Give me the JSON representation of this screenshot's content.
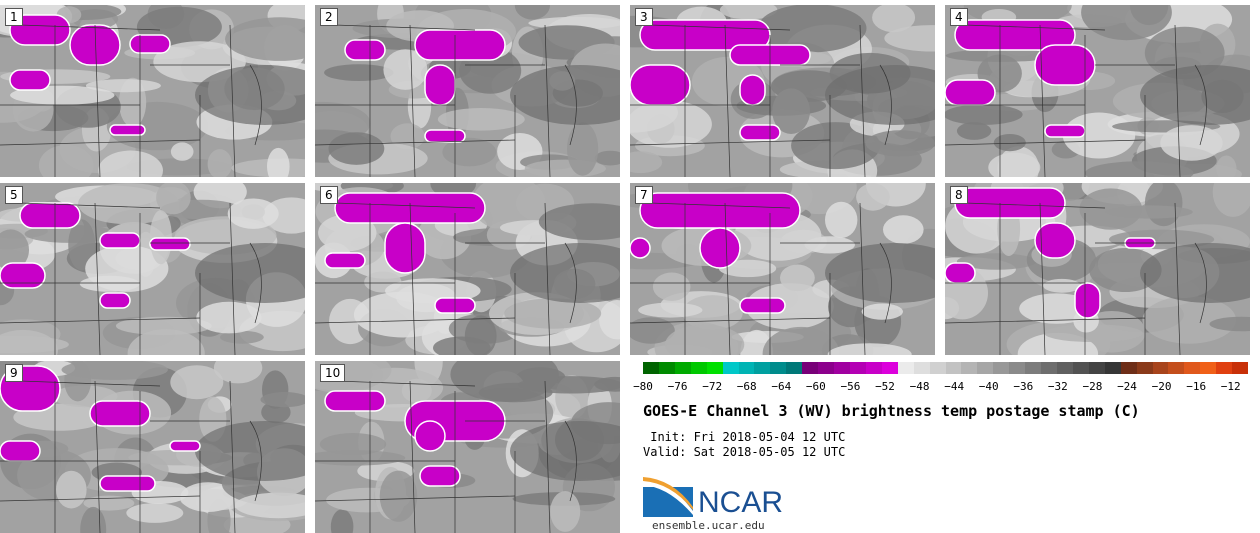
{
  "panels": [
    {
      "number": "1"
    },
    {
      "number": "2"
    },
    {
      "number": "3"
    },
    {
      "number": "4"
    },
    {
      "number": "5"
    },
    {
      "number": "6"
    },
    {
      "number": "7"
    },
    {
      "number": "8"
    },
    {
      "number": "9"
    },
    {
      "number": "10"
    }
  ],
  "colorbar": {
    "ticks": [
      "−80",
      "−76",
      "−72",
      "−68",
      "−64",
      "−60",
      "−56",
      "−52",
      "−48",
      "−44",
      "−40",
      "−36",
      "−32",
      "−28",
      "−24",
      "−20",
      "−16",
      "−12"
    ],
    "range": [
      -80,
      -10
    ],
    "colors": [
      "#006400",
      "#008a00",
      "#00aa00",
      "#00c800",
      "#00e000",
      "#00c8c8",
      "#00b4b4",
      "#00a0a0",
      "#008c8c",
      "#007878",
      "#780078",
      "#8c008c",
      "#a000a0",
      "#b400b4",
      "#c800c8",
      "#dc00dc",
      "#ebebeb",
      "#dedede",
      "#d0d0d0",
      "#c2c2c2",
      "#b4b4b4",
      "#a6a6a6",
      "#989898",
      "#8a8a8a",
      "#7c7c7c",
      "#6e6e6e",
      "#606060",
      "#525252",
      "#444444",
      "#363636",
      "#6e2e18",
      "#8a3a1a",
      "#a8441c",
      "#c44e1c",
      "#e0581c",
      "#f06018",
      "#e04010",
      "#c83008"
    ]
  },
  "title": "GOES-E Channel 3 (WV) brightness temp postage stamp (C)",
  "init": " Init: Fri 2018-05-04 12 UTC",
  "valid": "Valid: Sat 2018-05-05 12 UTC",
  "logo": {
    "text": "NCAR",
    "color": "#1a4f92"
  },
  "site": "ensemble.ucar.edu"
}
